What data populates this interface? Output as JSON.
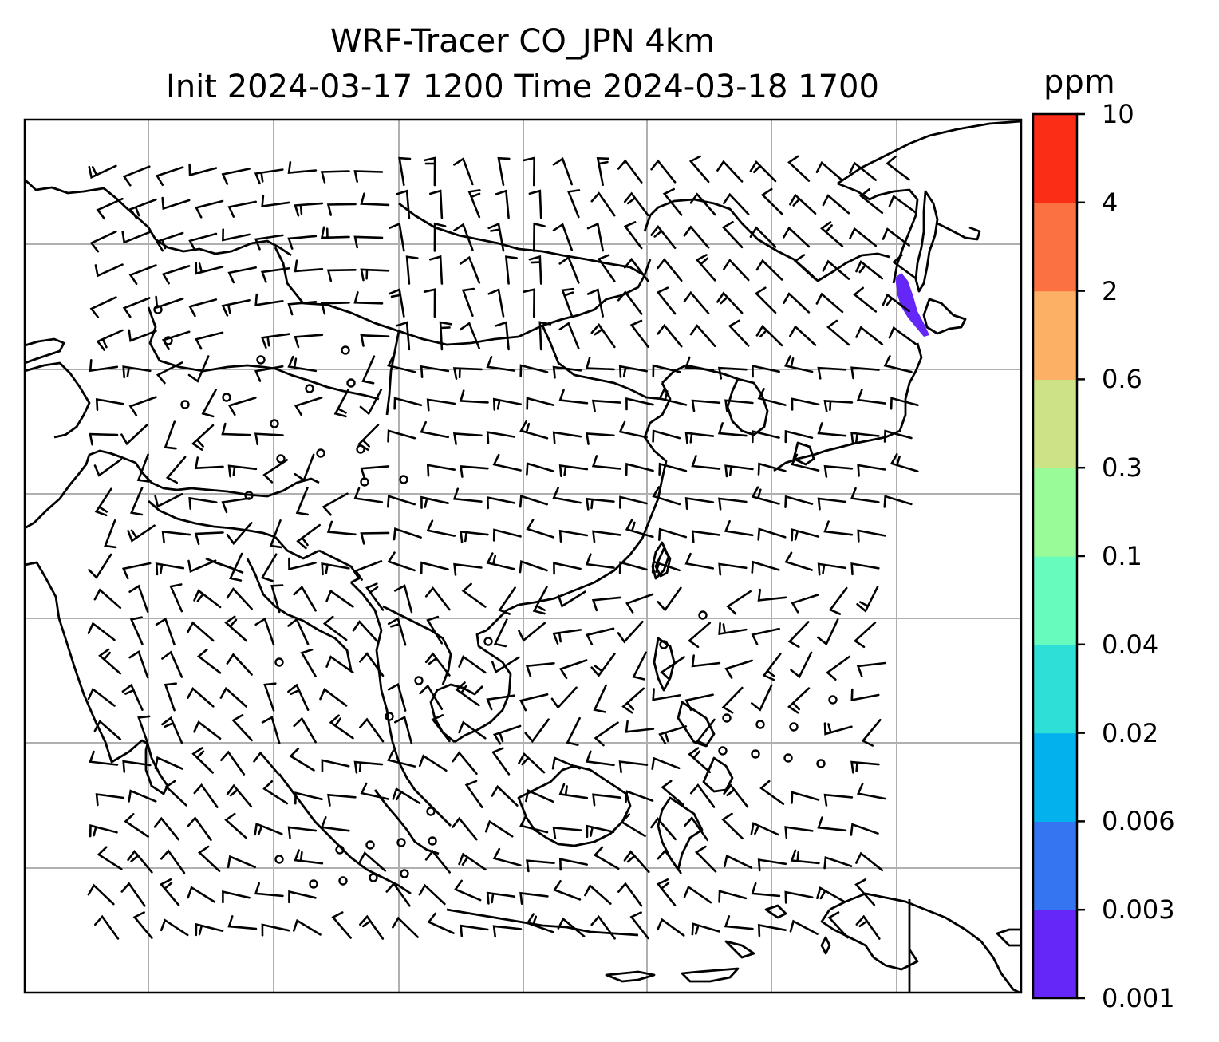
{
  "title_line1": "WRF-Tracer CO_JPN 4km",
  "title_line2": "Init 2024-03-17 1200 Time 2024-03-18 1700",
  "colorbar": {
    "unit": "ppm",
    "levels": [
      "0.001",
      "0.003",
      "0.006",
      "0.02",
      "0.04",
      "0.1",
      "0.3",
      "0.6",
      "2",
      "4",
      "10"
    ],
    "colors": [
      "#6527f8",
      "#3575f1",
      "#03b2ed",
      "#2ddfd7",
      "#67fbbe",
      "#99fa98",
      "#cde186",
      "#fcb065",
      "#fc7142",
      "#fc2d17"
    ]
  },
  "map": {
    "plume_color": "#6527f8",
    "grid_color": "#b0b0b0",
    "frame_color": "#000000"
  }
}
